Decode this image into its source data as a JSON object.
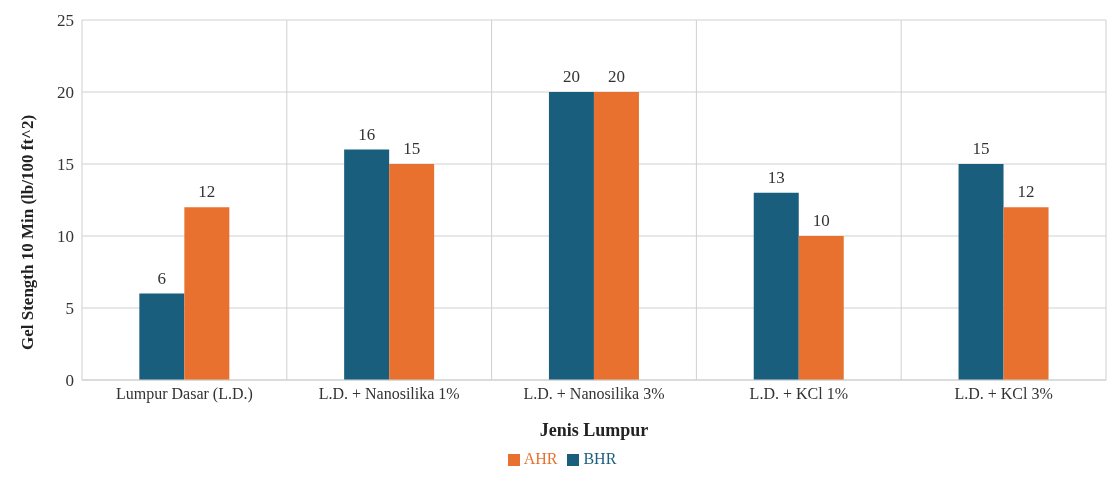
{
  "chart_data": {
    "type": "bar",
    "xlabel": "Jenis Lumpur",
    "ylabel": "Gel Stength 10 Min (lb/100 ft^2)",
    "categories": [
      "Lumpur Dasar (L.D.)",
      "L.D. + Nanosilika 1%",
      "L.D. + Nanosilika 3%",
      "L.D. + KCl 1%",
      "L.D. + KCl 3%"
    ],
    "series": [
      {
        "name": "BHR",
        "color": "#1a5e7e",
        "values": [
          6,
          16,
          20,
          13,
          15
        ]
      },
      {
        "name": "AHR",
        "color": "#e8712f",
        "values": [
          12,
          15,
          20,
          10,
          12
        ]
      }
    ],
    "ylim": [
      0,
      25
    ],
    "yticks": [
      0,
      5,
      10,
      15,
      20,
      25
    ],
    "grid": true,
    "legend": "bottom",
    "data_labels": true
  }
}
